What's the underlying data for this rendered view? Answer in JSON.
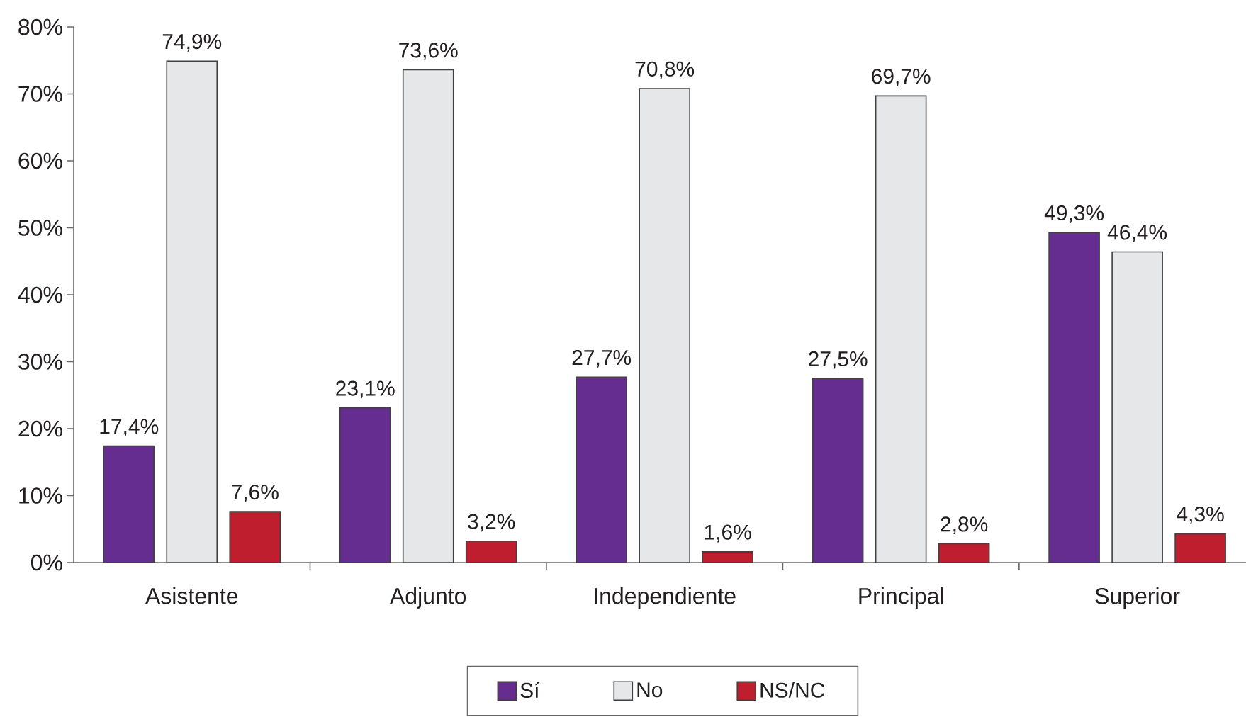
{
  "chart_data": {
    "type": "bar",
    "categories": [
      "Asistente",
      "Adjunto",
      "Independiente",
      "Principal",
      "Superior"
    ],
    "series": [
      {
        "name": "Sí",
        "color": "#662d91",
        "values": [
          17.4,
          23.1,
          27.7,
          27.5,
          49.3
        ],
        "value_labels": [
          "17,4%",
          "23,1%",
          "27,7%",
          "27,5%",
          "49,3%"
        ]
      },
      {
        "name": "No",
        "color": "#e6e7e8",
        "values": [
          74.9,
          73.6,
          70.8,
          69.7,
          46.4
        ],
        "value_labels": [
          "74,9%",
          "73,6%",
          "70,8%",
          "69,7%",
          "46,4%"
        ]
      },
      {
        "name": "NS/NC",
        "color": "#be1e2d",
        "values": [
          7.6,
          3.2,
          1.6,
          2.8,
          4.3
        ],
        "value_labels": [
          "7,6%",
          "3,2%",
          "1,6%",
          "2,8%",
          "4,3%"
        ]
      }
    ],
    "ylim": [
      0,
      80
    ],
    "yticks": [
      {
        "value": 0,
        "label": "0%"
      },
      {
        "value": 10,
        "label": "10%"
      },
      {
        "value": 20,
        "label": "20%"
      },
      {
        "value": 30,
        "label": "30%"
      },
      {
        "value": 40,
        "label": "40%"
      },
      {
        "value": 50,
        "label": "50%"
      },
      {
        "value": 60,
        "label": "60%"
      },
      {
        "value": 70,
        "label": "70%"
      },
      {
        "value": 80,
        "label": "80%"
      }
    ],
    "legend": "bottom"
  }
}
